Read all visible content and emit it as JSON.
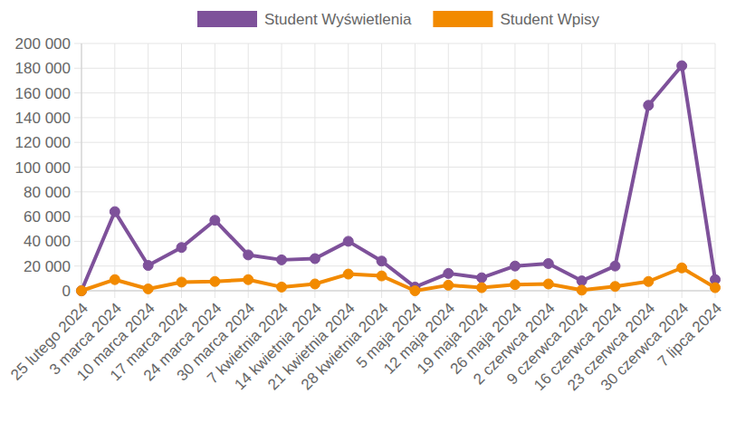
{
  "chart_data": {
    "type": "line",
    "categories": [
      "25 lutego 2024",
      "3 marca 2024",
      "10 marca 2024",
      "17 marca 2024",
      "24 marca 2024",
      "30 marca 2024",
      "7 kwietnia 2024",
      "14 kwietnia 2024",
      "21 kwietnia 2024",
      "28 kwietnia 2024",
      "5 maja 2024",
      "12 maja 2024",
      "19 maja 2024",
      "26 maja 2024",
      "2 czerwca 2024",
      "9 czerwca 2024",
      "16 czerwca 2024",
      "23 czerwca 2024",
      "30 czerwca 2024",
      "7 lipca 2024"
    ],
    "series": [
      {
        "name": "Student Wyświetlenia",
        "color": "#7e519a",
        "marker": "circle",
        "values": [
          0,
          64000,
          20500,
          35000,
          57000,
          29000,
          25000,
          26000,
          40000,
          24000,
          3000,
          14000,
          10500,
          20000,
          22000,
          8000,
          20000,
          150000,
          182000,
          9000
        ]
      },
      {
        "name": "Student Wpisy",
        "color": "#f28a00",
        "marker": "circle",
        "values": [
          0,
          9000,
          1500,
          7000,
          7500,
          9000,
          3000,
          5500,
          13500,
          12000,
          0,
          4500,
          2500,
          5000,
          5500,
          500,
          3500,
          7500,
          18500,
          2500
        ]
      }
    ],
    "ylim": [
      0,
      200000
    ],
    "yticks": [
      0,
      {
        "value": 20000,
        "label": "20 000"
      },
      {
        "value": 40000,
        "label": "40 000"
      },
      {
        "value": 60000,
        "label": "60 000"
      },
      {
        "value": 80000,
        "label": "80 000"
      },
      {
        "value": 100000,
        "label": "100 000"
      },
      {
        "value": 120000,
        "label": "120 000"
      },
      {
        "value": 140000,
        "label": "140 000"
      },
      {
        "value": 160000,
        "label": "160 000"
      },
      {
        "value": 180000,
        "label": "180 000"
      },
      {
        "value": 200000,
        "label": "200 000"
      }
    ],
    "grid": true,
    "legend": "top"
  }
}
